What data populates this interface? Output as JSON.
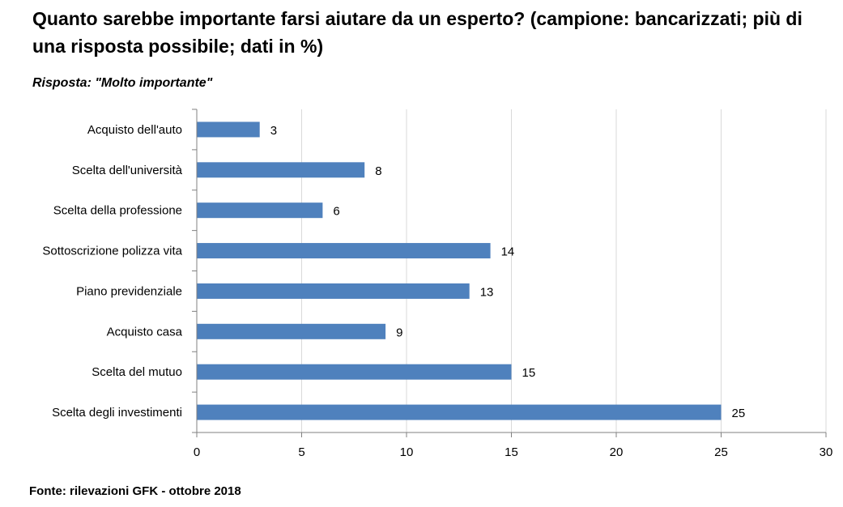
{
  "title": "Quanto sarebbe importante farsi aiutare da un esperto? (campione: bancarizzati; più di una risposta possibile; dati in %)",
  "subtitle": "Risposta: \"Molto importante\"",
  "source": "Fonte: rilevazioni GFK - ottobre 2018",
  "colors": {
    "bar": "#4f81bd",
    "grid": "#d9d9d9",
    "axis": "#808080"
  },
  "chart_data": {
    "type": "bar",
    "orientation": "horizontal",
    "categories": [
      "Acquisto dell'auto",
      "Scelta dell'università",
      "Scelta della professione",
      "Sottoscrizione polizza vita",
      "Piano previdenziale",
      "Acquisto casa",
      "Scelta del mutuo",
      "Scelta degli investimenti"
    ],
    "values": [
      3,
      8,
      6,
      14,
      13,
      9,
      15,
      25
    ],
    "data_labels": [
      "3",
      "8",
      "6",
      "14",
      "13",
      "9",
      "15",
      "25"
    ],
    "xlim": [
      0,
      30
    ],
    "xticks": [
      "0",
      "5",
      "10",
      "15",
      "20",
      "25",
      "30"
    ],
    "grid": true,
    "legend": false
  }
}
